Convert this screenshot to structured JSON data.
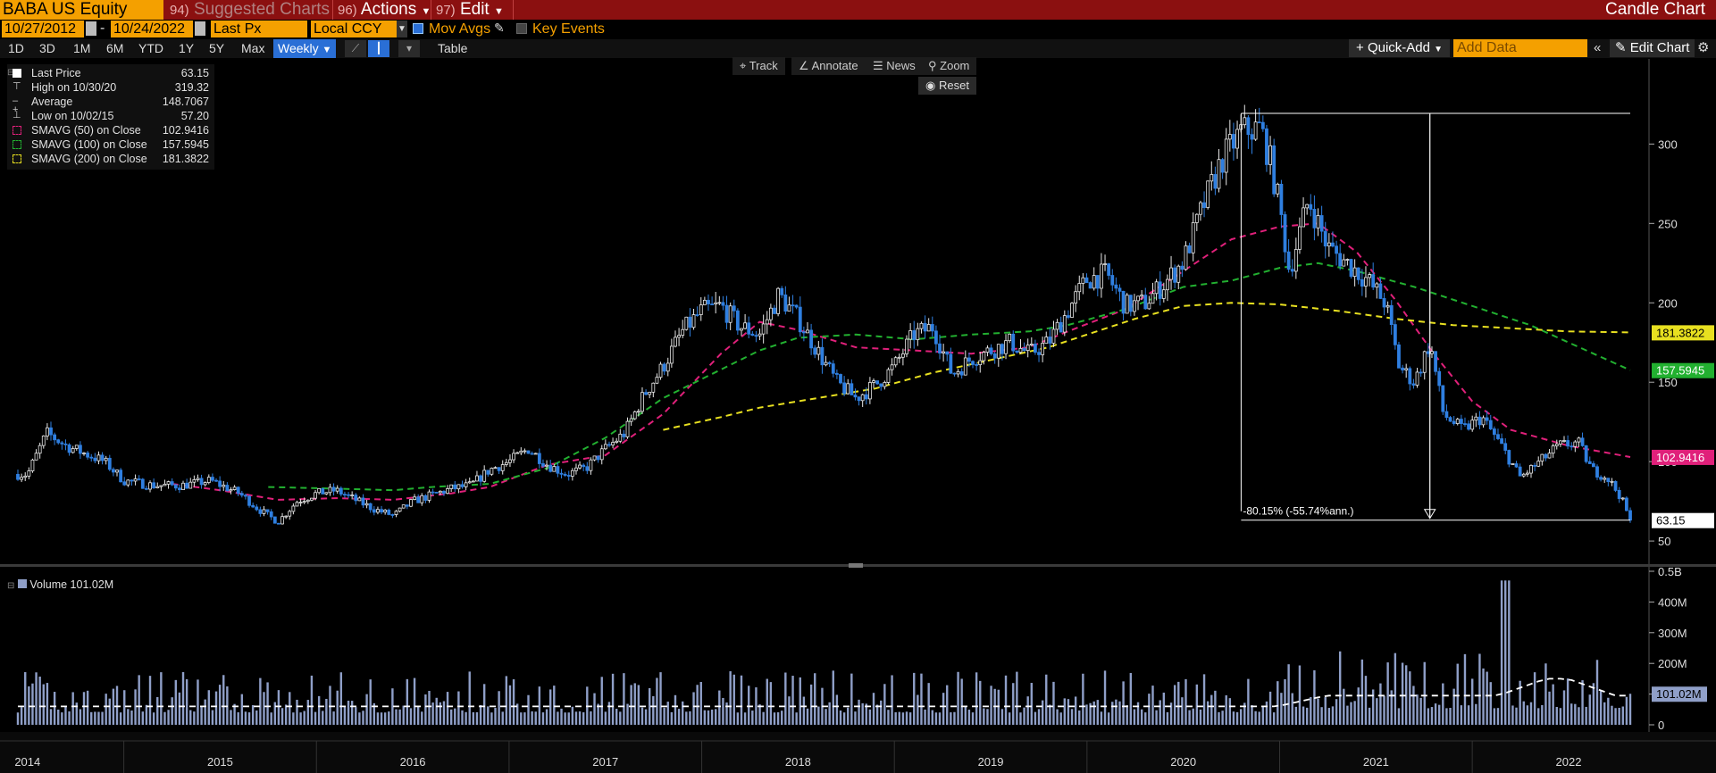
{
  "header": {
    "ticker": "BABA US Equity",
    "suggested_num": "94)",
    "suggested_label": "Suggested Charts",
    "actions_num": "96)",
    "actions_label": "Actions",
    "edit_num": "97)",
    "edit_label": "Edit",
    "chart_type": "Candle Chart"
  },
  "controls": {
    "start_date": "10/27/2012",
    "end_date": "10/24/2022",
    "field": "Last Px",
    "currency": "Local CCY",
    "mov_avgs_label": "Mov Avgs",
    "key_events_label": "Key Events",
    "periods": [
      "1D",
      "3D",
      "1M",
      "6M",
      "YTD",
      "1Y",
      "5Y",
      "Max"
    ],
    "frequency": "Weekly",
    "table_label": "Table",
    "quick_add": "Quick-Add",
    "add_data_placeholder": "Add Data",
    "edit_chart": "Edit Chart"
  },
  "tools": {
    "track": "Track",
    "annotate": "Annotate",
    "news": "News",
    "zoom": "Zoom",
    "reset": "Reset"
  },
  "colors": {
    "price_up": "#e8e8e8",
    "price_down": "#2f7fe0",
    "sma50": "#e0207a",
    "sma100": "#22b030",
    "sma200": "#e8e020",
    "volume": "#8f9fc8",
    "accent": "#f4a000",
    "titlebar": "#8b1010"
  },
  "legend": [
    {
      "name": "Last Price",
      "value": "63.15",
      "icon": "square-white"
    },
    {
      "name": "High on 10/30/20",
      "value": "319.32",
      "icon": "high-marker-icon"
    },
    {
      "name": "Average",
      "value": "148.7067",
      "icon": "average-marker-icon"
    },
    {
      "name": "Low on 10/02/15",
      "value": "57.20",
      "icon": "low-marker-icon"
    },
    {
      "name": "SMAVG (50)  on Close",
      "value": "102.9416",
      "icon": "square-magenta-dashed"
    },
    {
      "name": "SMAVG (100)  on Close",
      "value": "157.5945",
      "icon": "square-green-dashed"
    },
    {
      "name": "SMAVG (200)  on Close",
      "value": "181.3822",
      "icon": "square-yellow-dashed"
    }
  ],
  "volume_legend": {
    "name": "Volume",
    "value": "101.02M"
  },
  "chart_data": {
    "type": "candlestick",
    "frequency": "weekly",
    "ticker": "BABA US Equity",
    "price_axis": {
      "ticks": [
        50,
        100,
        150,
        200,
        250,
        300
      ],
      "range": [
        45,
        330
      ]
    },
    "volume_axis": {
      "ticks": [
        "0",
        "100M",
        "200M",
        "300M",
        "400M",
        "0.5B"
      ],
      "range": [
        0,
        500
      ]
    },
    "year_labels": [
      "2014",
      "2015",
      "2016",
      "2017",
      "2018",
      "2019",
      "2020",
      "2021",
      "2022"
    ],
    "price_x_range": [
      2014.45,
      2022.82
    ],
    "price_series": {
      "name": "Last Price",
      "points": [
        [
          2014.5,
          92
        ],
        [
          2014.6,
          118
        ],
        [
          2014.7,
          110
        ],
        [
          2014.8,
          105
        ],
        [
          2014.9,
          100
        ],
        [
          2015.0,
          88
        ],
        [
          2015.15,
          85
        ],
        [
          2015.3,
          85
        ],
        [
          2015.45,
          88
        ],
        [
          2015.6,
          80
        ],
        [
          2015.7,
          70
        ],
        [
          2015.8,
          62
        ],
        [
          2015.9,
          75
        ],
        [
          2016.0,
          80
        ],
        [
          2016.1,
          82
        ],
        [
          2016.2,
          76
        ],
        [
          2016.3,
          70
        ],
        [
          2016.4,
          66
        ],
        [
          2016.5,
          75
        ],
        [
          2016.6,
          79
        ],
        [
          2016.7,
          83
        ],
        [
          2016.8,
          85
        ],
        [
          2016.9,
          95
        ],
        [
          2017.0,
          100
        ],
        [
          2017.1,
          108
        ],
        [
          2017.2,
          98
        ],
        [
          2017.3,
          92
        ],
        [
          2017.4,
          96
        ],
        [
          2017.5,
          108
        ],
        [
          2017.6,
          118
        ],
        [
          2017.7,
          142
        ],
        [
          2017.8,
          160
        ],
        [
          2017.9,
          182
        ],
        [
          2018.0,
          195
        ],
        [
          2018.1,
          198
        ],
        [
          2018.2,
          185
        ],
        [
          2018.3,
          180
        ],
        [
          2018.4,
          205
        ],
        [
          2018.5,
          190
        ],
        [
          2018.6,
          170
        ],
        [
          2018.7,
          150
        ],
        [
          2018.8,
          140
        ],
        [
          2018.9,
          148
        ],
        [
          2019.0,
          160
        ],
        [
          2019.1,
          180
        ],
        [
          2019.2,
          185
        ],
        [
          2019.3,
          155
        ],
        [
          2019.4,
          165
        ],
        [
          2019.5,
          170
        ],
        [
          2019.6,
          175
        ],
        [
          2019.7,
          168
        ],
        [
          2019.8,
          175
        ],
        [
          2019.9,
          195
        ],
        [
          2020.0,
          215
        ],
        [
          2020.1,
          218
        ],
        [
          2020.2,
          198
        ],
        [
          2020.3,
          200
        ],
        [
          2020.4,
          212
        ],
        [
          2020.5,
          226
        ],
        [
          2020.6,
          260
        ],
        [
          2020.7,
          290
        ],
        [
          2020.8,
          308
        ],
        [
          2020.9,
          310
        ],
        [
          2020.95,
          290
        ],
        [
          2021.0,
          260
        ],
        [
          2021.05,
          220
        ],
        [
          2021.15,
          265
        ],
        [
          2021.25,
          235
        ],
        [
          2021.35,
          225
        ],
        [
          2021.45,
          215
        ],
        [
          2021.55,
          200
        ],
        [
          2021.62,
          160
        ],
        [
          2021.7,
          150
        ],
        [
          2021.78,
          175
        ],
        [
          2021.85,
          130
        ],
        [
          2021.95,
          120
        ],
        [
          2022.05,
          128
        ],
        [
          2022.15,
          110
        ],
        [
          2022.25,
          90
        ],
        [
          2022.35,
          100
        ],
        [
          2022.45,
          110
        ],
        [
          2022.55,
          112
        ],
        [
          2022.62,
          95
        ],
        [
          2022.7,
          90
        ],
        [
          2022.77,
          78
        ],
        [
          2022.82,
          63.15
        ]
      ]
    },
    "sma50": {
      "name": "SMAVG (50)",
      "last": 102.9416,
      "points": [
        [
          2015.25,
          86
        ],
        [
          2015.5,
          82
        ],
        [
          2015.8,
          76
        ],
        [
          2016.1,
          77
        ],
        [
          2016.4,
          76
        ],
        [
          2016.7,
          80
        ],
        [
          2016.9,
          84
        ],
        [
          2017.2,
          98
        ],
        [
          2017.5,
          104
        ],
        [
          2017.8,
          130
        ],
        [
          2018.1,
          168
        ],
        [
          2018.3,
          188
        ],
        [
          2018.5,
          183
        ],
        [
          2018.8,
          172
        ],
        [
          2019.1,
          170
        ],
        [
          2019.4,
          168
        ],
        [
          2019.7,
          172
        ],
        [
          2019.9,
          182
        ],
        [
          2020.2,
          196
        ],
        [
          2020.5,
          220
        ],
        [
          2020.75,
          240
        ],
        [
          2021.0,
          248
        ],
        [
          2021.2,
          250
        ],
        [
          2021.4,
          232
        ],
        [
          2021.6,
          202
        ],
        [
          2021.8,
          168
        ],
        [
          2022.0,
          138
        ],
        [
          2022.2,
          120
        ],
        [
          2022.5,
          110
        ],
        [
          2022.82,
          102.9
        ]
      ]
    },
    "sma100": {
      "name": "SMAVG (100)",
      "last": 157.5945,
      "points": [
        [
          2015.75,
          84
        ],
        [
          2016.1,
          83
        ],
        [
          2016.4,
          82
        ],
        [
          2016.6,
          84
        ],
        [
          2016.9,
          86
        ],
        [
          2017.2,
          96
        ],
        [
          2017.5,
          115
        ],
        [
          2017.8,
          140
        ],
        [
          2018.1,
          158
        ],
        [
          2018.3,
          170
        ],
        [
          2018.5,
          178
        ],
        [
          2018.8,
          180
        ],
        [
          2019.1,
          177
        ],
        [
          2019.4,
          180
        ],
        [
          2019.7,
          182
        ],
        [
          2019.9,
          186
        ],
        [
          2020.2,
          196
        ],
        [
          2020.5,
          210
        ],
        [
          2020.75,
          214
        ],
        [
          2021.0,
          222
        ],
        [
          2021.2,
          225
        ],
        [
          2021.4,
          220
        ],
        [
          2021.7,
          210
        ],
        [
          2022.0,
          198
        ],
        [
          2022.3,
          186
        ],
        [
          2022.5,
          175
        ],
        [
          2022.82,
          157.6
        ]
      ]
    },
    "sma200": {
      "name": "SMAVG (200)",
      "last": 181.3822,
      "points": [
        [
          2017.8,
          120
        ],
        [
          2018.1,
          128
        ],
        [
          2018.3,
          134
        ],
        [
          2018.6,
          140
        ],
        [
          2018.9,
          146
        ],
        [
          2019.2,
          156
        ],
        [
          2019.5,
          164
        ],
        [
          2019.8,
          172
        ],
        [
          2020.0,
          180
        ],
        [
          2020.25,
          190
        ],
        [
          2020.5,
          198
        ],
        [
          2020.75,
          200
        ],
        [
          2021.0,
          199
        ],
        [
          2021.3,
          195
        ],
        [
          2021.6,
          190
        ],
        [
          2021.9,
          186
        ],
        [
          2022.2,
          184
        ],
        [
          2022.5,
          182
        ],
        [
          2022.82,
          181.4
        ]
      ]
    },
    "high": {
      "label": "High on 10/30/20",
      "value": 319.32
    },
    "low": {
      "label": "Low on 10/02/15",
      "value": 57.2
    },
    "average": 148.7067,
    "last_price": 63.15,
    "annotation": {
      "text": "-80.15% (-55.74%ann.)",
      "from_value": 319.32,
      "to_value": 63.15
    },
    "right_labels": [
      {
        "value": 181.3822,
        "text": "181.3822",
        "color": "#e8e020"
      },
      {
        "value": 157.5945,
        "text": "157.5945",
        "color": "#22b030"
      },
      {
        "value": 102.9416,
        "text": "102.9416",
        "color": "#e0207a"
      },
      {
        "value": 63.15,
        "text": "63.15",
        "color": "#ffffff"
      }
    ],
    "volume_series": {
      "name": "Volume",
      "last": "101.02M",
      "last_value": 101.02,
      "typical_range": [
        30,
        280
      ],
      "peak": 470
    },
    "volume_avg_label": "101.02M"
  }
}
